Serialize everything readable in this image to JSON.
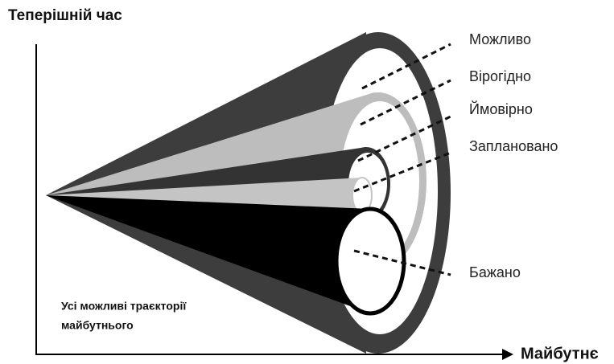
{
  "axes": {
    "y_label": "Теперішній час",
    "x_label": "Майбутнє"
  },
  "caption": [
    "Усі можливі траєкторії",
    "майбутнього"
  ],
  "cones": [
    {
      "label": "Можливо"
    },
    {
      "label": "Вірогідно"
    },
    {
      "label": "Ймовірно"
    },
    {
      "label": "Заплановано"
    },
    {
      "label": "Бажано"
    }
  ]
}
